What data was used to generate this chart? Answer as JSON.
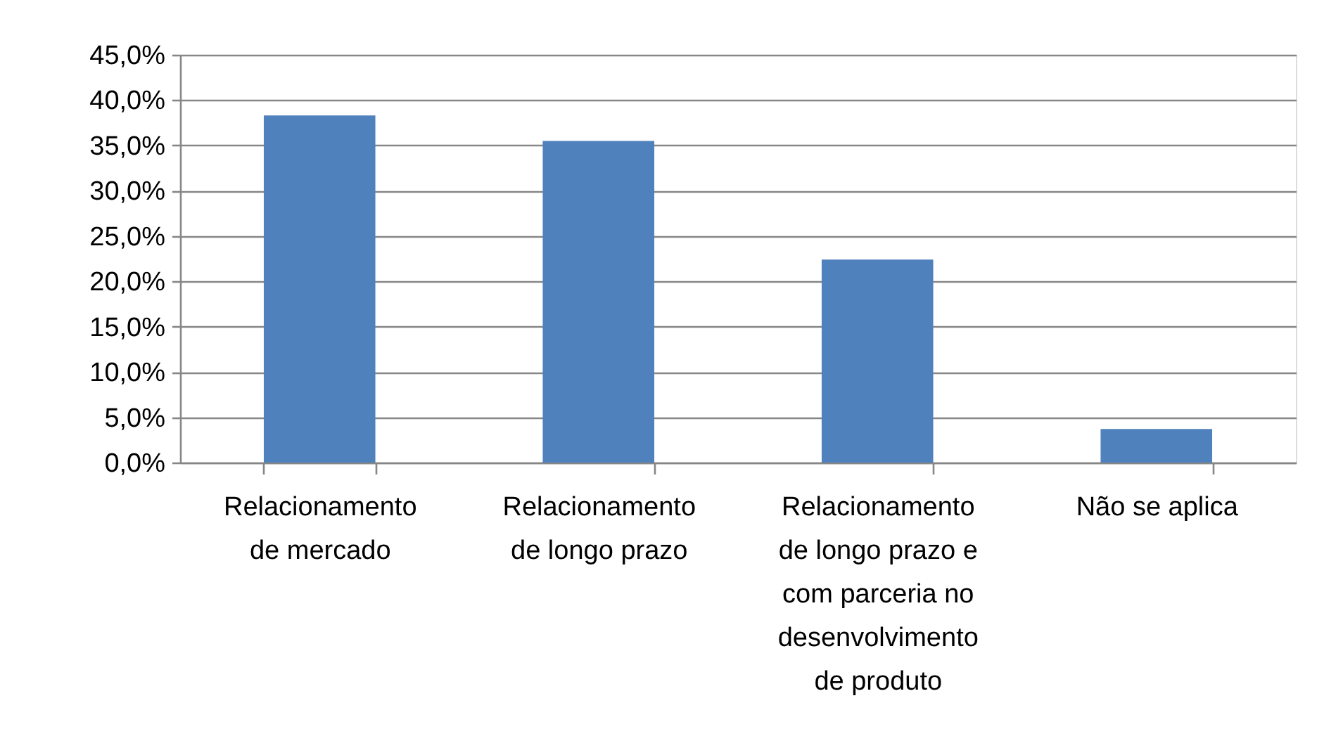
{
  "chart_data": {
    "type": "bar",
    "categories": [
      "Relacionamento de mercado",
      "Relacionamento de longo prazo",
      "Relacionamento de longo prazo e com parceria no desenvolvimento de produto",
      "Não se aplica"
    ],
    "values": [
      38.3,
      35.5,
      22.4,
      3.7
    ],
    "color": "#4f81bd",
    "ylim": [
      0,
      45
    ],
    "yticks": [
      {
        "value": 0,
        "label": "0,0%"
      },
      {
        "value": 5,
        "label": "5,0%"
      },
      {
        "value": 10,
        "label": "10,0%"
      },
      {
        "value": 15,
        "label": "15,0%"
      },
      {
        "value": 20,
        "label": "20,0%"
      },
      {
        "value": 25,
        "label": "25,0%"
      },
      {
        "value": 30,
        "label": "30,0%"
      },
      {
        "value": 35,
        "label": "35,0%"
      },
      {
        "value": 40,
        "label": "40,0%"
      },
      {
        "value": 45,
        "label": "45,0%"
      }
    ],
    "grid": "y"
  }
}
